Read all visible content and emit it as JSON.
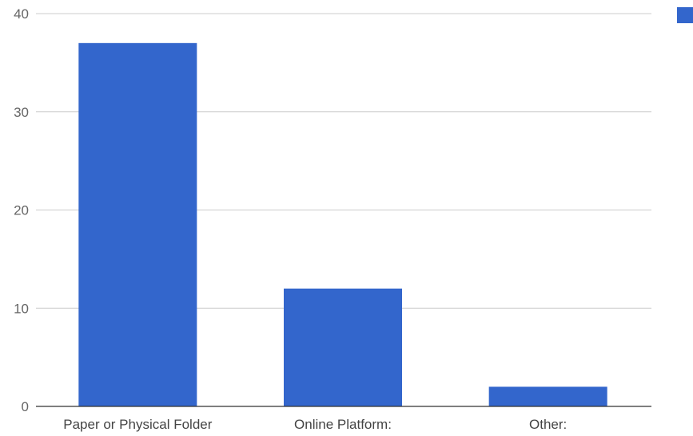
{
  "chart_data": {
    "type": "bar",
    "categories": [
      "Paper or Physical Folder",
      "Online Platform:",
      "Other:"
    ],
    "values": [
      37,
      12,
      2
    ],
    "ylim": [
      0,
      40
    ],
    "yticks": [
      0,
      10,
      20,
      30,
      40
    ],
    "title": "",
    "xlabel": "",
    "ylabel": "",
    "grid": true,
    "legend": {
      "placement": "top-right",
      "entries": [
        {
          "swatch_color": "#3366cc"
        }
      ]
    },
    "bar_color": "#3366cc"
  }
}
